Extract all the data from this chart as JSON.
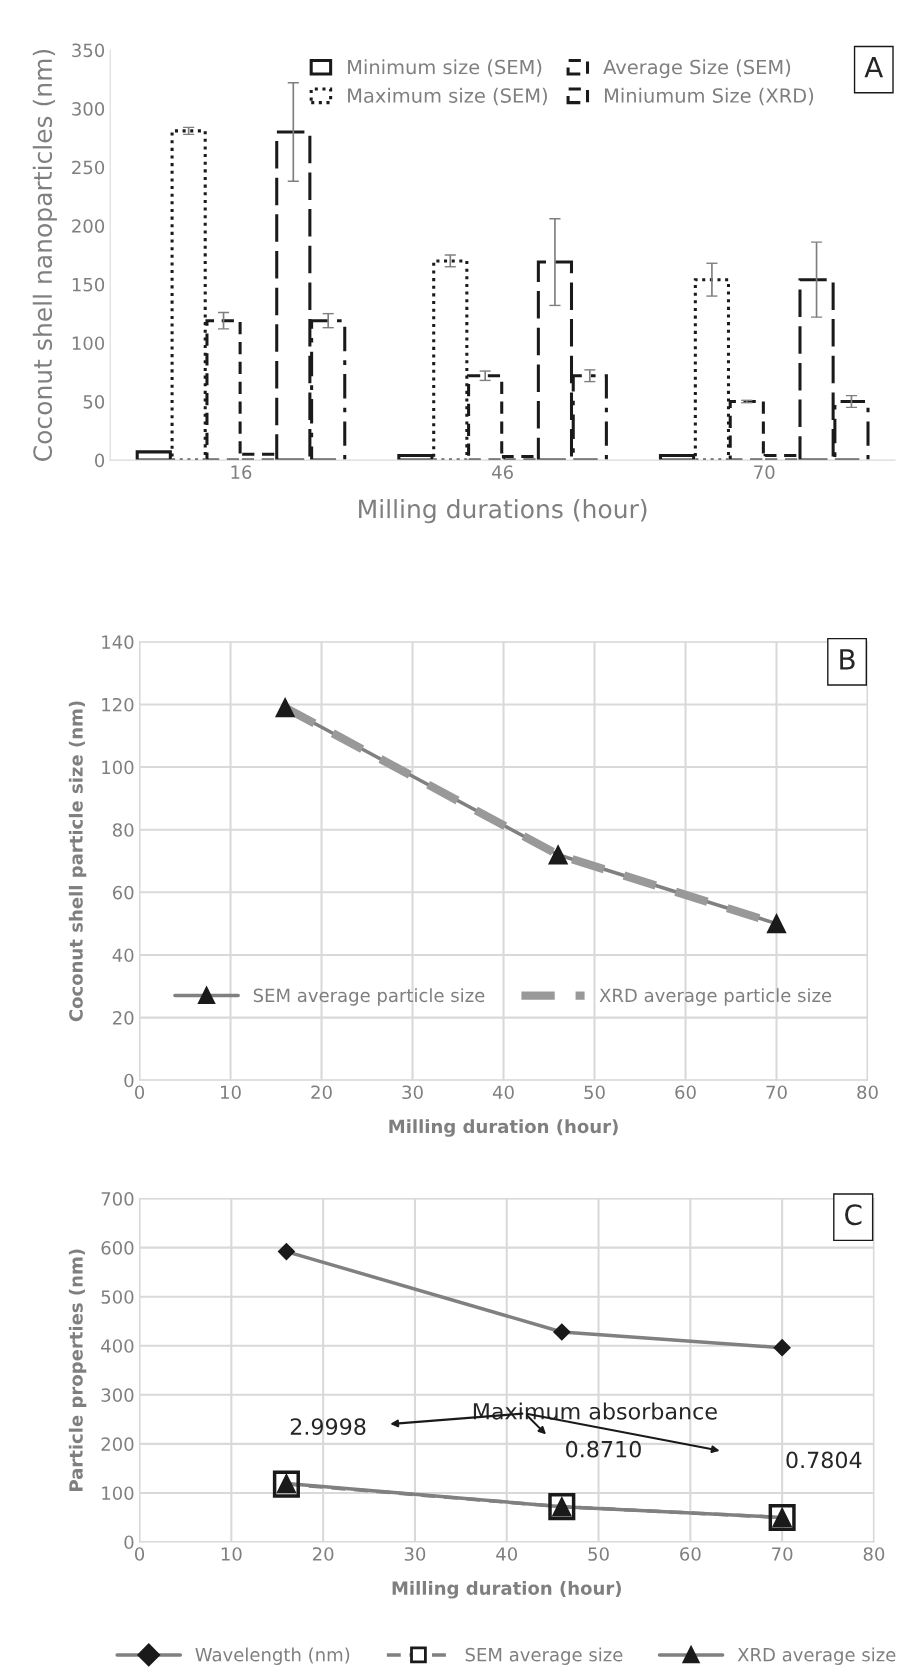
{
  "chart_data": [
    {
      "type": "bar",
      "xlabel": "Milling durations (hour)",
      "ylabel": "Coconut shell nanoparticles (nm)",
      "categories": [
        "16",
        "46",
        "70"
      ],
      "ylim": [
        0,
        350
      ],
      "yticks": [
        0,
        50,
        100,
        150,
        200,
        250,
        300,
        350
      ],
      "grid": false,
      "legend": "top right",
      "annotations": [
        "A"
      ],
      "series": [
        {
          "name": "Minimum size (SEM)",
          "color": "#1a1a1a",
          "line_style": "solid",
          "values": [
            7,
            4,
            4
          ],
          "errors": [
            null,
            null,
            null
          ]
        },
        {
          "name": "Maximum size (SEM)",
          "color": "#1a1a1a",
          "line_style": "dotted",
          "values": [
            281,
            170,
            154
          ],
          "errors": [
            3,
            5,
            14
          ]
        },
        {
          "name": "Average Size (SEM)",
          "color": "#1a1a1a",
          "line_style": "dashed",
          "values": [
            119,
            72,
            50
          ],
          "errors": [
            7,
            4,
            1
          ]
        },
        {
          "name": "Miniumum Size (XRD)",
          "color": "#1a1a1a",
          "line_style": "dashed",
          "values": [
            5,
            3,
            4
          ],
          "errors": [
            null,
            null,
            null
          ]
        },
        {
          "color": "#1a1a1a",
          "line_style": "longdash",
          "values": [
            280,
            169,
            154
          ],
          "errors": [
            42,
            37,
            32
          ]
        },
        {
          "color": "#1a1a1a",
          "line_style": "dashdot",
          "values": [
            119,
            72,
            50
          ],
          "errors": [
            6,
            5,
            5
          ]
        }
      ]
    },
    {
      "type": "line",
      "xlabel": "Milling duration (hour)",
      "ylabel": "Coconut shell particle size (nm)",
      "x": [
        16,
        46,
        70
      ],
      "xlim": [
        0,
        80
      ],
      "xticks": [
        0,
        10,
        20,
        30,
        40,
        50,
        60,
        70,
        80
      ],
      "ylim": [
        0,
        140
      ],
      "yticks": [
        0,
        20,
        40,
        60,
        80,
        100,
        120,
        140
      ],
      "grid": true,
      "legend": "bottom",
      "annotations": [
        "B"
      ],
      "series": [
        {
          "name": "SEM average particle size",
          "color": "#808080",
          "marker": "triangle",
          "line_style": "solid",
          "values": [
            119,
            72,
            50
          ]
        },
        {
          "name": "XRD average particle size",
          "color": "#999999",
          "marker": "none",
          "line_style": "dashed",
          "values": [
            119,
            72,
            50
          ]
        }
      ]
    },
    {
      "type": "line",
      "xlabel": "Milling duration (hour)",
      "ylabel": "Particle properties (nm)",
      "x": [
        16,
        46,
        70
      ],
      "xlim": [
        0,
        80
      ],
      "xticks": [
        0,
        10,
        20,
        30,
        40,
        50,
        60,
        70,
        80
      ],
      "ylim": [
        0,
        700
      ],
      "yticks": [
        0,
        100,
        200,
        300,
        400,
        500,
        600,
        700
      ],
      "grid": true,
      "legend": "bottom",
      "annotations": [
        "C",
        "Maximum absorbance",
        {
          "text": "2.9998",
          "x": 16,
          "y": 118
        },
        {
          "text": "0.8710",
          "x": 46,
          "y": 72
        },
        {
          "text": "0.7804",
          "x": 70,
          "y": 50
        }
      ],
      "series": [
        {
          "name": "Wavelength (nm)",
          "color": "#808080",
          "marker": "diamond",
          "line_style": "solid",
          "values": [
            592,
            428,
            396
          ]
        },
        {
          "name": "SEM average size",
          "color": "#808080",
          "marker": "square",
          "line_style": "dashed",
          "values": [
            118,
            72,
            50
          ]
        },
        {
          "name": "XRD average size",
          "color": "#808080",
          "marker": "triangle",
          "line_style": "solid",
          "values": [
            119,
            72,
            50
          ]
        }
      ]
    }
  ]
}
